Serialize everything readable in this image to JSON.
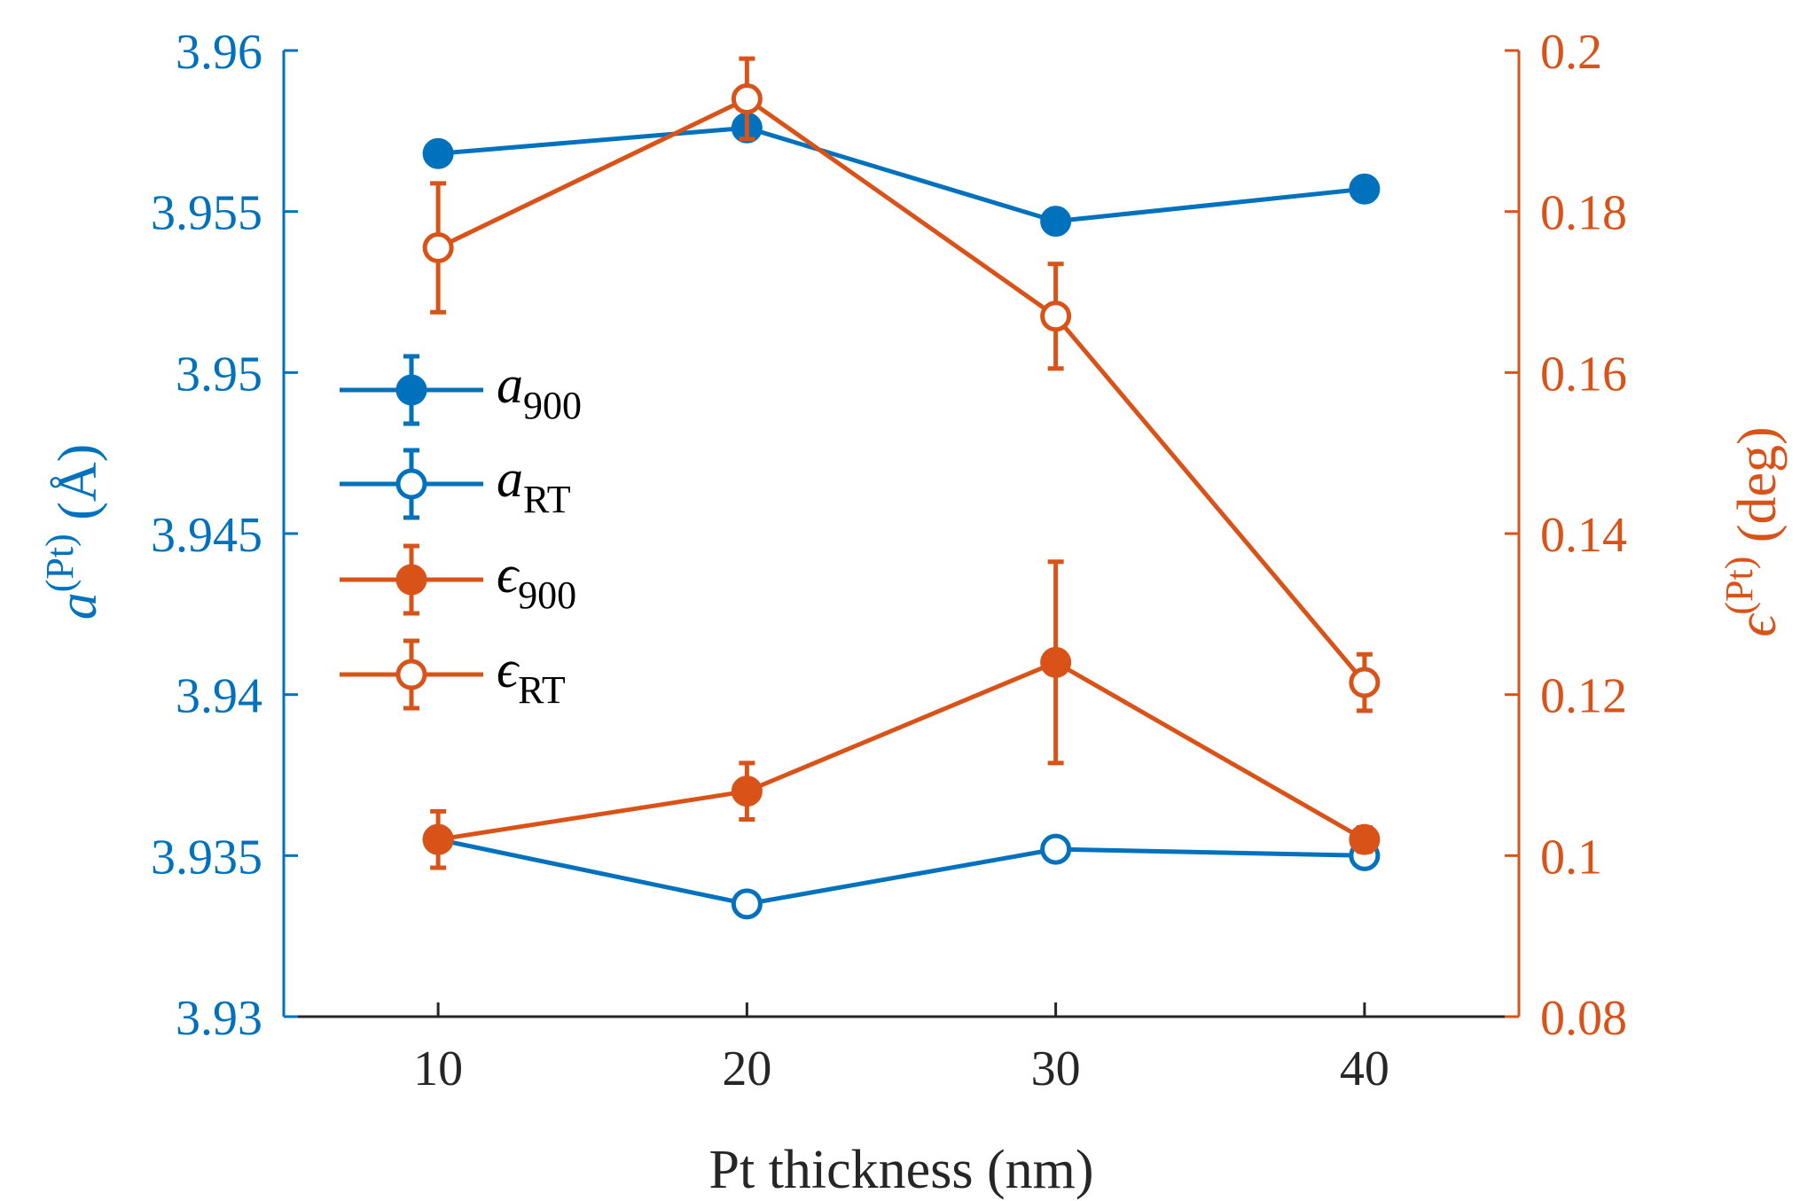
{
  "chart_data": {
    "type": "line",
    "xlabel": "Pt thickness (nm)",
    "ylabel_left": {
      "symbol": "a",
      "superscript": "(Pt)",
      "unit": "(Å)"
    },
    "ylabel_right": {
      "symbol": "ϵ",
      "superscript": "(Pt)",
      "unit": "(deg)"
    },
    "xlim": [
      5,
      45
    ],
    "ylim_left": [
      3.93,
      3.96
    ],
    "ylim_right": [
      0.08,
      0.2
    ],
    "x_ticks": [
      10,
      20,
      30,
      40
    ],
    "x_tick_labels": [
      "10",
      "20",
      "30",
      "40"
    ],
    "y_left_ticks": [
      3.93,
      3.935,
      3.94,
      3.945,
      3.95,
      3.955,
      3.96
    ],
    "y_left_tick_labels": [
      "3.93",
      "3.935",
      "3.94",
      "3.945",
      "3.95",
      "3.955",
      "3.96"
    ],
    "y_right_ticks": [
      0.08,
      0.1,
      0.12,
      0.14,
      0.16,
      0.18,
      0.2
    ],
    "y_right_tick_labels": [
      "0.08",
      "0.1",
      "0.12",
      "0.14",
      "0.16",
      "0.18",
      "0.2"
    ],
    "x": [
      10,
      20,
      30,
      40
    ],
    "series": [
      {
        "id": "a900",
        "label": "a",
        "subscript": "900",
        "axis": "left",
        "filled": true,
        "color": "#0072BD",
        "values": [
          3.9568,
          3.9576,
          3.9547,
          3.9557
        ],
        "errors": [
          0.0001,
          0.0001,
          0.0002,
          0.0001
        ]
      },
      {
        "id": "aRT",
        "label": "a",
        "subscript": "RT",
        "axis": "left",
        "filled": false,
        "color": "#0072BD",
        "values": [
          3.9355,
          3.9335,
          3.9352,
          3.935
        ],
        "errors": [
          0.0001,
          0.0002,
          0.0002,
          0.0001
        ]
      },
      {
        "id": "e900",
        "label": "ϵ",
        "subscript": "900",
        "axis": "right",
        "filled": true,
        "color": "#D95319",
        "values": [
          0.102,
          0.108,
          0.124,
          0.102
        ],
        "errors": [
          0.0035,
          0.0035,
          0.0125,
          0.0015
        ]
      },
      {
        "id": "eRT",
        "label": "ϵ",
        "subscript": "RT",
        "axis": "right",
        "filled": false,
        "color": "#D95319",
        "values": [
          0.1755,
          0.194,
          0.167,
          0.1215
        ],
        "errors": [
          0.008,
          0.005,
          0.0065,
          0.0035
        ]
      }
    ],
    "legend_position": "middle-left",
    "grid": false
  },
  "colors": {
    "left_axis": "#0072BD",
    "right_axis": "#D95319",
    "x_axis": "#262626"
  }
}
